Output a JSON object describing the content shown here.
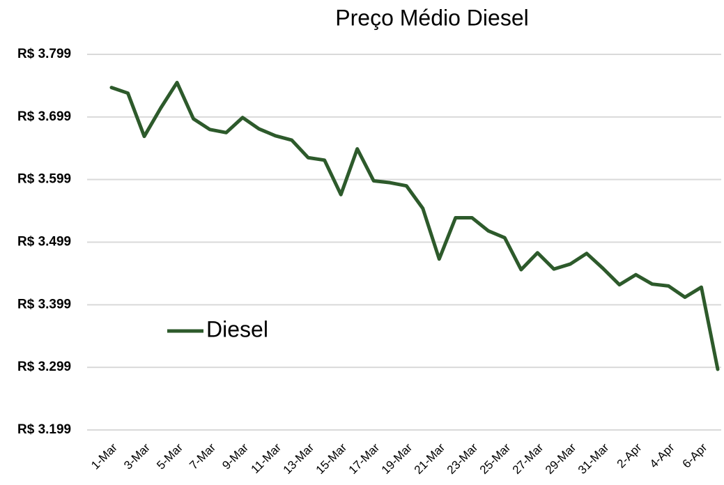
{
  "chart_data": {
    "type": "line",
    "title": "Preço Médio Diesel",
    "categories": [
      "1-Mar",
      null,
      "3-Mar",
      null,
      "5-Mar",
      null,
      "7-Mar",
      null,
      "9-Mar",
      null,
      "11-Mar",
      null,
      "13-Mar",
      null,
      "15-Mar",
      null,
      "17-Mar",
      null,
      "19-Mar",
      null,
      "21-Mar",
      null,
      "23-Mar",
      null,
      "25-Mar",
      null,
      "27-Mar",
      null,
      "29-Mar",
      null,
      "31-Mar",
      null,
      "2-Apr",
      null,
      "4-Apr",
      null,
      "6-Apr",
      null
    ],
    "series": [
      {
        "name": "Diesel",
        "color": "#2d5a2b",
        "values": [
          3.746,
          3.737,
          3.668,
          3.713,
          3.754,
          3.696,
          3.679,
          3.674,
          3.698,
          3.68,
          3.669,
          3.662,
          3.634,
          3.63,
          3.575,
          3.648,
          3.597,
          3.594,
          3.589,
          3.553,
          3.472,
          3.538,
          3.538,
          3.517,
          3.506,
          3.455,
          3.482,
          3.456,
          3.464,
          3.481,
          3.457,
          3.431,
          3.447,
          3.432,
          3.429,
          3.411,
          3.427,
          3.296
        ]
      }
    ],
    "ylim": [
      3.199,
      3.799
    ],
    "yticks": [
      {
        "value": 3.199,
        "label": "R$ 3.199"
      },
      {
        "value": 3.299,
        "label": "R$ 3.299"
      },
      {
        "value": 3.399,
        "label": "R$ 3.399"
      },
      {
        "value": 3.499,
        "label": "R$ 3.499"
      },
      {
        "value": 3.599,
        "label": "R$ 3.599"
      },
      {
        "value": 3.699,
        "label": "R$ 3.699"
      },
      {
        "value": 3.799,
        "label": "R$ 3.799"
      }
    ],
    "grid": true,
    "legend": "left"
  }
}
